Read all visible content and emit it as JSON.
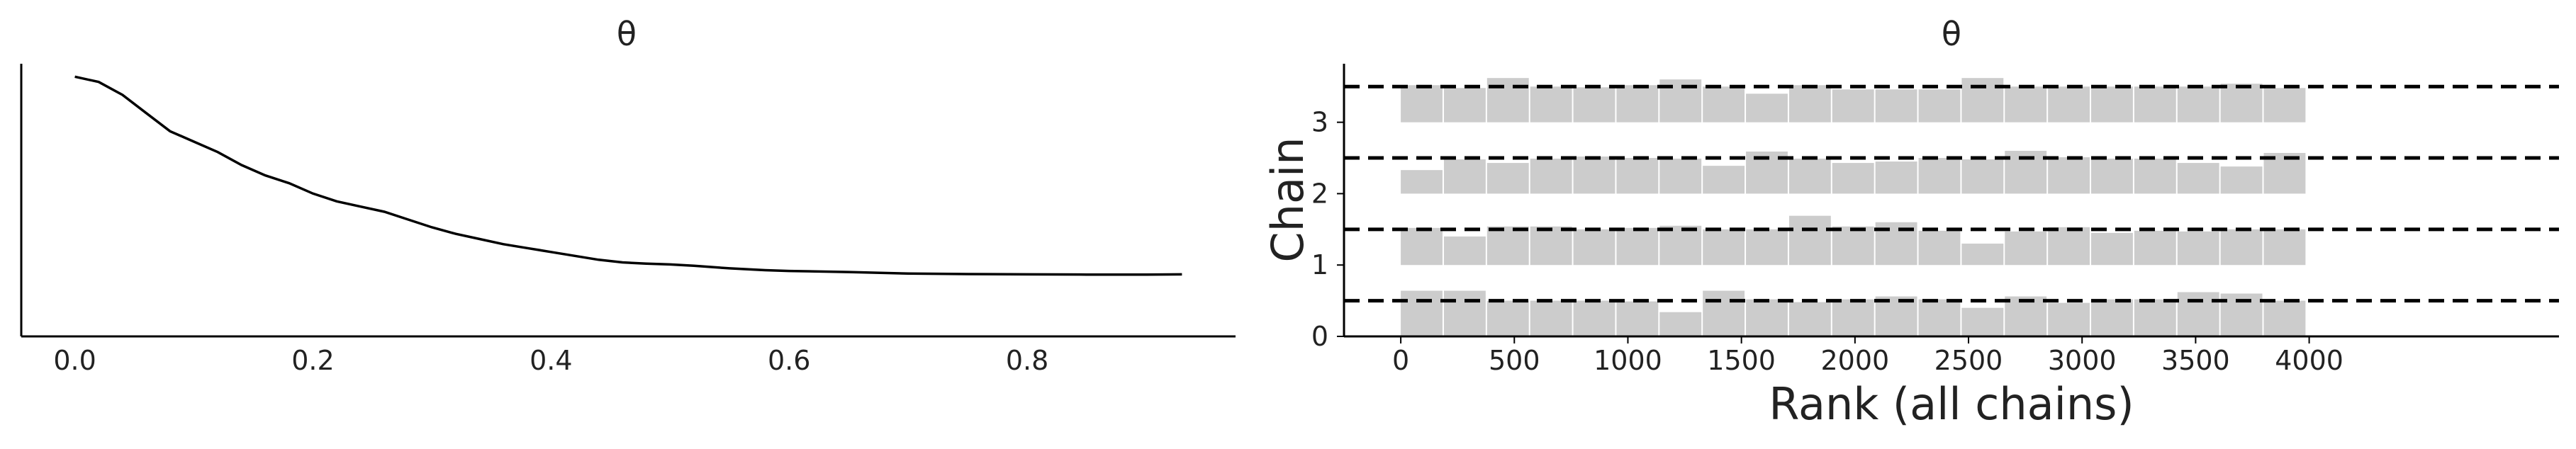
{
  "chart_data": [
    {
      "type": "line",
      "title": "θ",
      "xlabel": "",
      "ylabel": "",
      "xlim": [
        -0.045,
        0.975
      ],
      "ylim": [
        0,
        1.05
      ],
      "x_ticks": [
        "0.0",
        "0.2",
        "0.4",
        "0.6",
        "0.8"
      ],
      "x": [
        0.0,
        0.02,
        0.04,
        0.06,
        0.08,
        0.1,
        0.12,
        0.14,
        0.16,
        0.18,
        0.2,
        0.22,
        0.24,
        0.26,
        0.28,
        0.3,
        0.32,
        0.34,
        0.36,
        0.38,
        0.4,
        0.42,
        0.44,
        0.46,
        0.48,
        0.5,
        0.52,
        0.55,
        0.58,
        0.6,
        0.65,
        0.7,
        0.75,
        0.8,
        0.85,
        0.9,
        0.93
      ],
      "series": [
        {
          "values": [
            1.0,
            0.98,
            0.93,
            0.86,
            0.79,
            0.75,
            0.71,
            0.66,
            0.62,
            0.59,
            0.55,
            0.52,
            0.5,
            0.48,
            0.45,
            0.42,
            0.395,
            0.375,
            0.355,
            0.34,
            0.325,
            0.31,
            0.295,
            0.285,
            0.28,
            0.277,
            0.272,
            0.262,
            0.255,
            0.252,
            0.248,
            0.242,
            0.24,
            0.239,
            0.238,
            0.238,
            0.239
          ]
        }
      ],
      "grid": false,
      "left_spine_only": true
    },
    {
      "type": "bar",
      "title": "θ",
      "xlabel": "Rank (all chains)",
      "ylabel": "Chain",
      "xlim": [
        -250,
        5100
      ],
      "ylim": [
        0,
        3.82
      ],
      "x_ticks": [
        "0",
        "500",
        "1000",
        "1500",
        "2000",
        "2500",
        "3000",
        "3500",
        "4000"
      ],
      "y_ticks": [
        "0",
        "1",
        "2",
        "3"
      ],
      "bin_edges": [
        0,
        190,
        380,
        570,
        760,
        950,
        1140,
        1330,
        1520,
        1710,
        1900,
        2090,
        2280,
        2470,
        2660,
        2850,
        3040,
        3230,
        3420,
        3610,
        3800,
        3990
      ],
      "reference_level": 0.5,
      "series": [
        {
          "name": "0",
          "values": [
            0.64,
            0.64,
            0.5,
            0.5,
            0.5,
            0.49,
            0.34,
            0.64,
            0.52,
            0.48,
            0.52,
            0.56,
            0.52,
            0.4,
            0.56,
            0.47,
            0.52,
            0.52,
            0.62,
            0.6,
            0.5
          ]
        },
        {
          "name": "1",
          "values": [
            0.52,
            0.4,
            0.54,
            0.54,
            0.5,
            0.52,
            0.55,
            0.5,
            0.5,
            0.69,
            0.54,
            0.6,
            0.48,
            0.3,
            0.47,
            0.53,
            0.45,
            0.48,
            0.47,
            0.5,
            0.5
          ]
        },
        {
          "name": "2",
          "values": [
            0.33,
            0.48,
            0.43,
            0.49,
            0.52,
            0.5,
            0.49,
            0.39,
            0.59,
            0.49,
            0.43,
            0.45,
            0.5,
            0.48,
            0.6,
            0.51,
            0.49,
            0.49,
            0.43,
            0.38,
            0.57
          ]
        },
        {
          "name": "3",
          "values": [
            0.52,
            0.48,
            0.62,
            0.5,
            0.49,
            0.52,
            0.6,
            0.5,
            0.4,
            0.52,
            0.46,
            0.46,
            0.46,
            0.62,
            0.5,
            0.5,
            0.5,
            0.5,
            0.5,
            0.54,
            0.48
          ]
        }
      ],
      "colors": {
        "bars": "#cccccc",
        "reference_line": "#000000"
      }
    }
  ]
}
